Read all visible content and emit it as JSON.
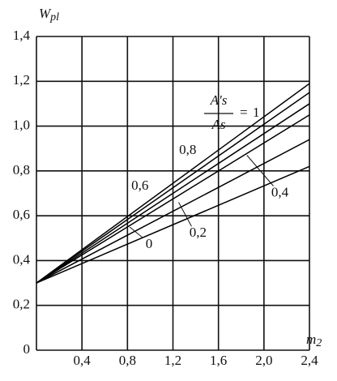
{
  "chart_data": {
    "type": "line",
    "y_label": {
      "main": "W",
      "sub": "pl"
    },
    "x_label": {
      "main": "m",
      "sub": "2"
    },
    "annotation": {
      "numerator": "A's",
      "denominator": "As",
      "equals": "="
    },
    "x": [
      0,
      2.4
    ],
    "series": [
      {
        "name": "1",
        "color": "#000000",
        "values": [
          0.3,
          1.19
        ]
      },
      {
        "name": "0,8",
        "color": "#000000",
        "values": [
          0.3,
          1.15
        ]
      },
      {
        "name": "0,6",
        "color": "#000000",
        "values": [
          0.3,
          1.1
        ]
      },
      {
        "name": "0,4",
        "color": "#000000",
        "values": [
          0.3,
          1.05
        ]
      },
      {
        "name": "0,2",
        "color": "#000000",
        "values": [
          0.3,
          0.94
        ]
      },
      {
        "name": "0",
        "color": "#000000",
        "values": [
          0.3,
          0.82
        ]
      }
    ],
    "xlim": [
      0,
      2.4
    ],
    "ylim": [
      0,
      1.4
    ],
    "xticks": [
      {
        "value": 0.4,
        "label": "0,4"
      },
      {
        "value": 0.8,
        "label": "0,8"
      },
      {
        "value": 1.2,
        "label": "1,2"
      },
      {
        "value": 1.6,
        "label": "1,6"
      },
      {
        "value": 2.0,
        "label": "2,0"
      },
      {
        "value": 2.4,
        "label": "2,4"
      }
    ],
    "yticks": [
      0,
      {
        "value": 0.2,
        "label": "0,2"
      },
      {
        "value": 0.4,
        "label": "0,4"
      },
      {
        "value": 0.6,
        "label": "0,6"
      },
      {
        "value": 0.8,
        "label": "0,8"
      },
      {
        "value": 1.0,
        "label": "1,0"
      },
      {
        "value": 1.2,
        "label": "1,2"
      },
      {
        "value": 1.4,
        "label": "1,4"
      }
    ],
    "grid": true
  }
}
